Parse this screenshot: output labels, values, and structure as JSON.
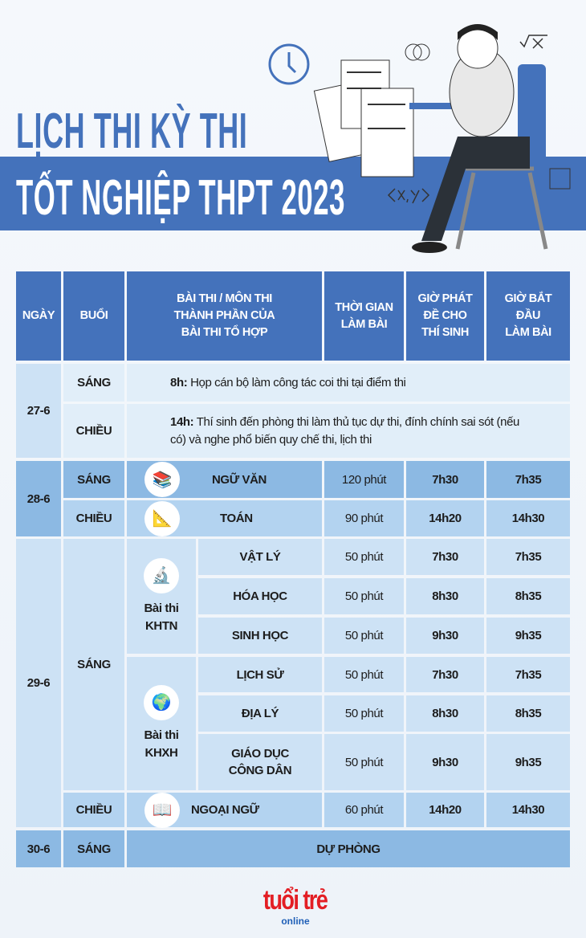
{
  "title": {
    "line1": "LỊCH THI KỲ THI",
    "line2": "TỐT NGHIỆP THPT 2023"
  },
  "colors": {
    "header": "#4472bb",
    "light": "#cde2f5",
    "medium": "#8cb9e3",
    "logo": "#e31e24"
  },
  "table": {
    "headers": [
      "NGÀY",
      "BUỔI",
      "BÀI THI / MÔN THI THÀNH PHẦN CỦA BÀI THI TỔ HỢP",
      "THỜI GIAN LÀM BÀI",
      "GIỜ PHÁT ĐỀ CHO THÍ SINH",
      "GIỜ BẮT ĐẦU LÀM BÀI"
    ],
    "day27": {
      "date": "27-6",
      "morning": "SÁNG",
      "morning_time": "8h:",
      "morning_text": " Họp cán bộ làm công tác coi thi tại điểm thi",
      "afternoon": "CHIỀU",
      "afternoon_time": "14h:",
      "afternoon_text": " Thí sinh đến phòng thi làm thủ tục dự thi, đính chính sai sót (nếu có) và nghe phổ biến quy chế thi, lịch thi"
    },
    "day28": {
      "date": "28-6",
      "rows": [
        {
          "session": "SÁNG",
          "subject": "NGỮ VĂN",
          "icon": "books-icon",
          "duration": "120 phút",
          "hand_out": "7h30",
          "start": "7h35"
        },
        {
          "session": "CHIỀU",
          "subject": "TOÁN",
          "icon": "math-icon",
          "duration": "90 phút",
          "hand_out": "14h20",
          "start": "14h30"
        }
      ]
    },
    "day29": {
      "date": "29-6",
      "morning": "SÁNG",
      "khtn": {
        "label": "Bài thi KHTN",
        "icon": "science-icon",
        "rows": [
          {
            "subject": "VẬT LÝ",
            "duration": "50 phút",
            "hand_out": "7h30",
            "start": "7h35"
          },
          {
            "subject": "HÓA HỌC",
            "duration": "50 phút",
            "hand_out": "8h30",
            "start": "8h35"
          },
          {
            "subject": "SINH HỌC",
            "duration": "50 phút",
            "hand_out": "9h30",
            "start": "9h35"
          }
        ]
      },
      "khxh": {
        "label": "Bài thi KHXH",
        "icon": "globe-icon",
        "rows": [
          {
            "subject": "LỊCH SỬ",
            "duration": "50 phút",
            "hand_out": "7h30",
            "start": "7h35"
          },
          {
            "subject": "ĐỊA LÝ",
            "duration": "50 phút",
            "hand_out": "8h30",
            "start": "8h35"
          },
          {
            "subject": "GIÁO DỤC CÔNG DÂN",
            "duration": "50 phút",
            "hand_out": "9h30",
            "start": "9h35"
          }
        ]
      },
      "afternoon": {
        "session": "CHIỀU",
        "subject": "NGOẠI NGỮ",
        "icon": "language-book-icon",
        "duration": "60 phút",
        "hand_out": "14h20",
        "start": "14h30"
      }
    },
    "day30": {
      "date": "30-6",
      "session": "SÁNG",
      "note": "DỰ PHÒNG"
    }
  },
  "logo": {
    "main": "tuổi trẻ",
    "sub": "online"
  }
}
